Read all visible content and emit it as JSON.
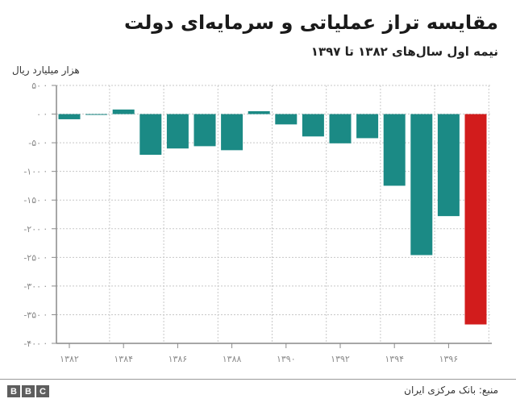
{
  "header": {
    "title": "مقایسه تراز عملیاتی و سرمایه‌ای دولت",
    "subtitle": "نیمه اول سال‌های ۱۳۸۲ تا ۱۳۹۷"
  },
  "footer": {
    "source": "منبع: بانک مرکزی ایران",
    "logo_letters": [
      "B",
      "B",
      "C"
    ]
  },
  "colors": {
    "bar": "#1b8a85",
    "highlight": "#d21c1c",
    "grid": "#c8c8c8",
    "axis": "#8a8a8a",
    "tick_text": "#8a8a8a"
  },
  "chart_data": {
    "type": "bar",
    "title": "مقایسه تراز عملیاتی و سرمایه‌ای دولت",
    "subtitle": "نیمه اول سال‌های ۱۳۸۲ تا ۱۳۹۷",
    "xlabel": "",
    "ylabel": "هزار میلیارد ریال",
    "categories": [
      "1382",
      "1383",
      "1384",
      "1385",
      "1386",
      "1387",
      "1388",
      "1389",
      "1390",
      "1391",
      "1392",
      "1393",
      "1394",
      "1395",
      "1396",
      "1397"
    ],
    "values": [
      -9,
      -1,
      8,
      -71,
      -60,
      -56,
      -63,
      5,
      -18,
      -39,
      -51,
      -42,
      -125,
      -246,
      -178,
      -367
    ],
    "highlight_index": 15,
    "ylim": [
      -400,
      50
    ],
    "yticks": [
      50,
      0,
      -50,
      -100,
      -150,
      -200,
      -250,
      -300,
      -350,
      -400
    ],
    "ytick_labels": [
      "۵۰",
      "۰",
      "-۵۰",
      "-۱۰۰",
      "-۱۵۰",
      "-۲۰۰",
      "-۲۵۰",
      "-۳۰۰",
      "-۳۵۰",
      "-۴۰۰"
    ],
    "xtick_labels": [
      "۱۳۸۲",
      "۱۳۸۴",
      "۱۳۸۶",
      "۱۳۸۸",
      "۱۳۹۰",
      "۱۳۹۲",
      "۱۳۹۴",
      "۱۳۹۶"
    ],
    "xtick_indices": [
      0,
      2,
      4,
      6,
      8,
      10,
      12,
      14
    ],
    "grid": true,
    "legend": null
  }
}
